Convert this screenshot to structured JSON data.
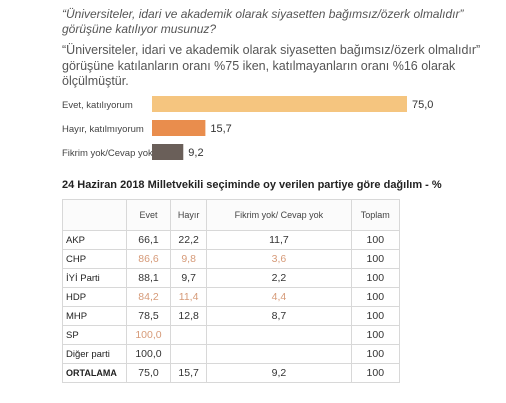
{
  "question": "“Üniversiteler, idari ve akademik olarak siyasetten bağımsız/özerk olmalıdır” görüşüne katılıyor musunuz?",
  "description": "“Üniversiteler, idari ve akademik olarak siyasetten bağımsız/özerk olmalıdır” görüşüne katılanların oranı %75 iken, katılmayanların oranı %16 olarak ölçülmüştür.",
  "chart_data": {
    "type": "bar",
    "orientation": "horizontal",
    "categories": [
      "Evet, katılıyorum",
      "Hayır, katılmıyorum",
      "Fikrim yok/Cevap yok"
    ],
    "values": [
      75.0,
      15.7,
      9.2
    ],
    "value_labels": [
      "75,0",
      "15,7",
      "9,2"
    ],
    "colors": [
      "#f5c57f",
      "#e98d4d",
      "#6a5f59"
    ],
    "xlim": [
      0,
      100
    ],
    "grid": false,
    "legend": "none"
  },
  "table": {
    "title": "24 Haziran 2018 Milletvekili seçiminde oy verilen partiye göre dağılım - %",
    "columns": [
      "",
      "Evet",
      "Hayır",
      "Fikrim yok/ Cevap yok",
      "Toplam"
    ],
    "rows": [
      {
        "party": "AKP",
        "cells": [
          "66,1",
          "22,2",
          "11,7",
          "100"
        ],
        "light": false
      },
      {
        "party": "CHP",
        "cells": [
          "86,6",
          "9,8",
          "3,6",
          "100"
        ],
        "light": true
      },
      {
        "party": "İYİ Parti",
        "cells": [
          "88,1",
          "9,7",
          "2,2",
          "100"
        ],
        "light": false
      },
      {
        "party": "HDP",
        "cells": [
          "84,2",
          "11,4",
          "4,4",
          "100"
        ],
        "light": true
      },
      {
        "party": "MHP",
        "cells": [
          "78,5",
          "12,8",
          "8,7",
          "100"
        ],
        "light": false
      },
      {
        "party": "SP",
        "cells": [
          "100,0",
          "",
          "",
          "100"
        ],
        "light": true
      },
      {
        "party": "Diğer parti",
        "cells": [
          "100,0",
          "",
          "",
          "100"
        ],
        "light": false
      },
      {
        "party": "ORTALAMA",
        "cells": [
          "75,0",
          "15,7",
          "9,2",
          "100"
        ],
        "light": false,
        "avg": true
      }
    ]
  }
}
